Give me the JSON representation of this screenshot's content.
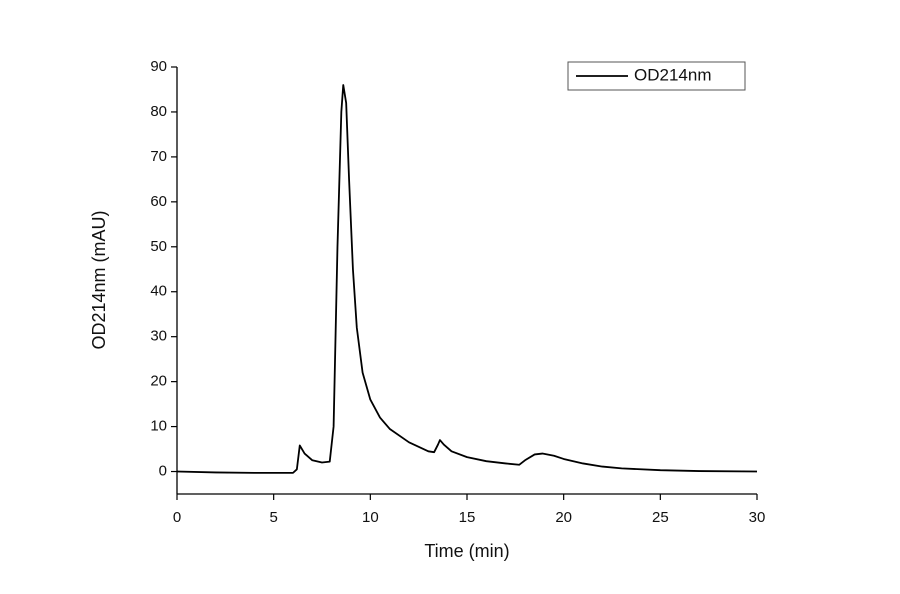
{
  "chart_data": {
    "type": "line",
    "x_label": "Time (min)",
    "y_label": "OD214nm (mAU)",
    "x": [
      0,
      2,
      4,
      6,
      6.2,
      6.35,
      6.6,
      7,
      7.5,
      7.9,
      8.1,
      8.3,
      8.5,
      8.6,
      8.75,
      8.9,
      9.1,
      9.3,
      9.6,
      10,
      10.5,
      11,
      12,
      13,
      13.3,
      13.5,
      13.6,
      13.8,
      14.2,
      15,
      16,
      17,
      17.7,
      18,
      18.5,
      18.9,
      19.5,
      20,
      21,
      22,
      23,
      25,
      27,
      30
    ],
    "series": [
      {
        "name": "OD214nm",
        "color": "#000000",
        "values": [
          0,
          -0.2,
          -0.3,
          -0.3,
          0.5,
          5.8,
          4,
          2.5,
          2,
          2.2,
          10,
          50,
          80,
          86,
          82,
          65,
          45,
          32,
          22,
          16,
          12,
          9.5,
          6.5,
          4.5,
          4.3,
          6,
          7,
          6,
          4.5,
          3.2,
          2.3,
          1.8,
          1.5,
          2.5,
          3.8,
          4,
          3.5,
          2.8,
          1.8,
          1.1,
          0.7,
          0.3,
          0.1,
          0
        ]
      }
    ],
    "xlim": [
      0,
      30
    ],
    "xticks": [
      0,
      5,
      10,
      15,
      20,
      25,
      30
    ],
    "ylim": [
      -5,
      90
    ],
    "yticks": [
      0,
      10,
      20,
      30,
      40,
      50,
      60,
      70,
      80,
      90
    ],
    "legend": "top-right"
  }
}
